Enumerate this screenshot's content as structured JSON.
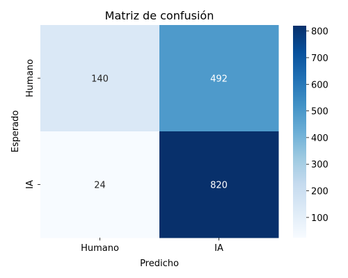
{
  "chart_data": {
    "type": "heatmap",
    "title": "Matriz de confusión",
    "xlabel": "Predicho",
    "ylabel": "Esperado",
    "x_categories": [
      "Humano",
      "IA"
    ],
    "y_categories": [
      "Humano",
      "IA"
    ],
    "values": [
      [
        140,
        492
      ],
      [
        24,
        820
      ]
    ],
    "colorscale": "Blues",
    "color_range": [
      24,
      820
    ],
    "colorbar_ticks": [
      "100",
      "200",
      "300",
      "400",
      "500",
      "600",
      "700",
      "800"
    ],
    "grid": false
  }
}
